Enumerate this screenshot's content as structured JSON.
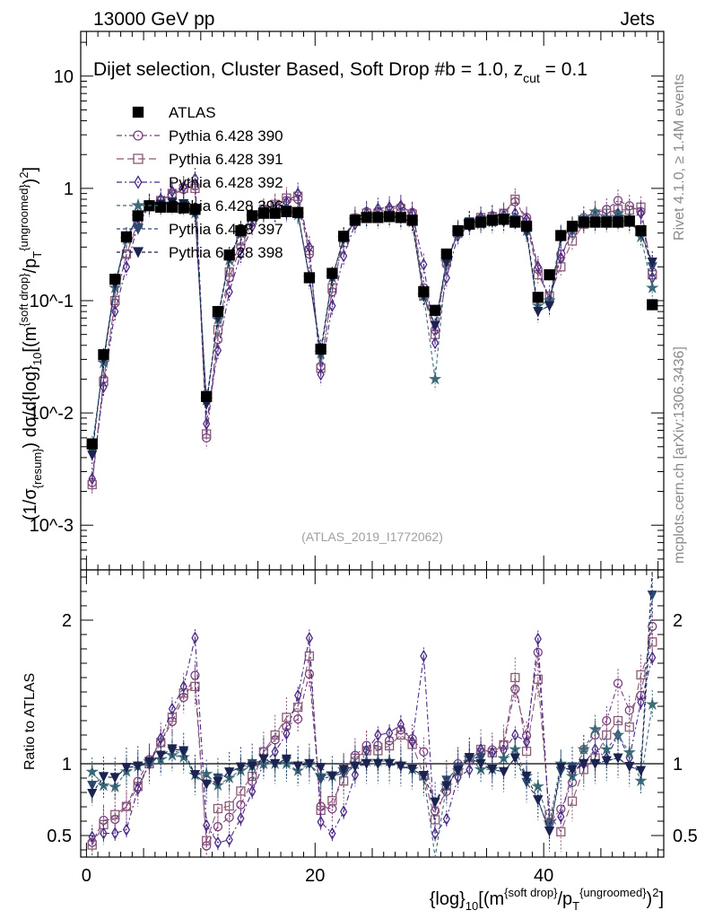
{
  "header": {
    "left": "13000 GeV pp",
    "right": "Jets"
  },
  "panel_title": "Dijet selection, Cluster Based, Soft Drop #b = 1.0, z",
  "panel_title_sub": "cut",
  "panel_title_end": " = 0.1",
  "analysis_id": "(ATLAS_2019_I1772062)",
  "side_labels": {
    "rivet": "Rivet 4.1.0, ≥ 1.4M events",
    "site": "mcplots.cern.ch [arXiv:1306.3436]"
  },
  "chart_data": [
    {
      "type": "scatter",
      "title": "Dijet selection, Cluster Based, Soft Drop #b = 1.0, z_cut = 0.1",
      "ylabel": "(1/σ_{resum}) dσ/d{log}_10[(m^{soft drop}/p_T^{ungroomed})^2]",
      "yscale": "log",
      "ylim": [
        0.0004,
        25
      ],
      "xlim": [
        -0.5,
        50.5
      ],
      "ytick_labels": [
        "10^-3",
        "10^-2",
        "10^-1",
        "1",
        "10"
      ],
      "x": [
        0.5,
        1.5,
        2.5,
        3.5,
        4.5,
        5.5,
        6.5,
        7.5,
        8.5,
        9.5,
        10.5,
        11.5,
        12.5,
        13.5,
        14.5,
        15.5,
        16.5,
        17.5,
        18.5,
        19.5,
        20.5,
        21.5,
        22.5,
        23.5,
        24.5,
        25.5,
        26.5,
        27.5,
        28.5,
        29.5,
        30.5,
        31.5,
        32.5,
        33.5,
        34.5,
        35.5,
        36.5,
        37.5,
        38.5,
        39.5,
        40.5,
        41.5,
        42.5,
        43.5,
        44.5,
        45.5,
        46.5,
        47.5,
        48.5,
        49.5
      ],
      "series": [
        {
          "name": "ATLAS",
          "marker": "square-filled",
          "color": "#000000",
          "values": [
            0.0053,
            0.033,
            0.155,
            0.37,
            0.57,
            0.7,
            0.68,
            0.68,
            0.67,
            0.65,
            0.014,
            0.08,
            0.255,
            0.42,
            0.57,
            0.6,
            0.6,
            0.62,
            0.61,
            0.16,
            0.037,
            0.175,
            0.375,
            0.52,
            0.55,
            0.55,
            0.56,
            0.55,
            0.52,
            0.12,
            0.082,
            0.26,
            0.42,
            0.48,
            0.5,
            0.52,
            0.53,
            0.5,
            0.46,
            0.107,
            0.17,
            0.38,
            0.46,
            0.5,
            0.5,
            0.5,
            0.5,
            0.51,
            0.42,
            0.092
          ]
        },
        {
          "name": "Pythia 6.428 390",
          "marker": "circle-open",
          "color": "#7b3f7f",
          "dash": "6,3,2,3",
          "values": [
            0.0024,
            0.02,
            0.095,
            0.26,
            0.5,
            0.72,
            0.78,
            0.88,
            0.98,
            1.05,
            0.006,
            0.045,
            0.16,
            0.3,
            0.5,
            0.65,
            0.7,
            0.78,
            0.8,
            0.26,
            0.026,
            0.12,
            0.36,
            0.55,
            0.62,
            0.62,
            0.65,
            0.68,
            0.61,
            0.13,
            0.055,
            0.21,
            0.42,
            0.5,
            0.54,
            0.57,
            0.6,
            0.76,
            0.55,
            0.19,
            0.1,
            0.26,
            0.4,
            0.55,
            0.6,
            0.65,
            0.78,
            0.7,
            0.62,
            0.18
          ]
        },
        {
          "name": "Pythia 6.428 391",
          "marker": "square-open",
          "color": "#8a5a76",
          "dash": "8,4",
          "values": [
            0.0023,
            0.019,
            0.1,
            0.26,
            0.48,
            0.7,
            0.78,
            0.9,
            1.0,
            1.0,
            0.0065,
            0.055,
            0.18,
            0.34,
            0.52,
            0.65,
            0.72,
            0.82,
            0.85,
            0.28,
            0.025,
            0.13,
            0.33,
            0.54,
            0.6,
            0.6,
            0.63,
            0.66,
            0.59,
            0.11,
            0.05,
            0.22,
            0.4,
            0.5,
            0.55,
            0.56,
            0.6,
            0.8,
            0.5,
            0.17,
            0.11,
            0.2,
            0.34,
            0.48,
            0.52,
            0.6,
            0.65,
            0.64,
            0.68,
            0.17
          ]
        },
        {
          "name": "Pythia 6.428 392",
          "marker": "diamond-open",
          "color": "#4b2a86",
          "dash": "6,3,2,3",
          "values": [
            0.0026,
            0.017,
            0.08,
            0.2,
            0.47,
            0.7,
            0.8,
            0.94,
            1.03,
            1.22,
            0.008,
            0.036,
            0.12,
            0.26,
            0.46,
            0.6,
            0.65,
            0.75,
            0.9,
            0.3,
            0.022,
            0.09,
            0.25,
            0.48,
            0.6,
            0.66,
            0.68,
            0.7,
            0.6,
            0.21,
            0.042,
            0.16,
            0.38,
            0.46,
            0.55,
            0.56,
            0.58,
            0.6,
            0.53,
            0.2,
            0.1,
            0.24,
            0.43,
            0.5,
            0.55,
            0.52,
            0.6,
            0.53,
            0.6,
            0.16
          ]
        },
        {
          "name": "Pythia 6.428 396",
          "marker": "star-filled",
          "color": "#3d6b78",
          "dash": "4,3",
          "values": [
            0.005,
            0.028,
            0.13,
            0.35,
            0.56,
            0.71,
            0.7,
            0.72,
            0.7,
            0.6,
            0.013,
            0.068,
            0.23,
            0.4,
            0.56,
            0.6,
            0.6,
            0.62,
            0.58,
            0.16,
            0.034,
            0.16,
            0.36,
            0.52,
            0.56,
            0.56,
            0.57,
            0.55,
            0.5,
            0.11,
            0.02,
            0.22,
            0.4,
            0.5,
            0.48,
            0.5,
            0.55,
            0.55,
            0.42,
            0.09,
            0.1,
            0.38,
            0.42,
            0.55,
            0.62,
            0.55,
            0.6,
            0.55,
            0.37,
            0.13
          ]
        },
        {
          "name": "Pythia 6.428 397",
          "marker": "triangle-down-filled",
          "color": "#2a4a70",
          "dash": "4,3",
          "values": [
            0.0045,
            0.03,
            0.14,
            0.36,
            0.56,
            0.7,
            0.72,
            0.74,
            0.72,
            0.6,
            0.012,
            0.072,
            0.24,
            0.41,
            0.57,
            0.62,
            0.6,
            0.63,
            0.6,
            0.16,
            0.033,
            0.16,
            0.35,
            0.51,
            0.55,
            0.55,
            0.56,
            0.54,
            0.5,
            0.11,
            0.06,
            0.23,
            0.41,
            0.5,
            0.52,
            0.5,
            0.5,
            0.52,
            0.4,
            0.08,
            0.09,
            0.36,
            0.45,
            0.5,
            0.5,
            0.51,
            0.52,
            0.5,
            0.4,
            0.2
          ]
        },
        {
          "name": "Pythia 6.428 398",
          "marker": "triangle-down-filled",
          "color": "#1c2350",
          "dash": "4,3",
          "values": [
            0.0042,
            0.03,
            0.14,
            0.36,
            0.56,
            0.71,
            0.72,
            0.75,
            0.73,
            0.6,
            0.012,
            0.07,
            0.24,
            0.41,
            0.56,
            0.62,
            0.6,
            0.64,
            0.6,
            0.16,
            0.036,
            0.16,
            0.36,
            0.51,
            0.55,
            0.55,
            0.56,
            0.54,
            0.5,
            0.11,
            0.06,
            0.22,
            0.4,
            0.5,
            0.5,
            0.5,
            0.5,
            0.52,
            0.42,
            0.08,
            0.09,
            0.37,
            0.44,
            0.5,
            0.5,
            0.51,
            0.52,
            0.5,
            0.4,
            0.22
          ]
        }
      ]
    },
    {
      "type": "scatter",
      "ylabel": "Ratio to ATLAS",
      "xlabel": "{log}_10[(m^{soft drop}/p_T^{ungroomed})^2]",
      "ylim": [
        0.35,
        2.35
      ],
      "xlim": [
        -0.5,
        50.5
      ],
      "yticks": [
        0.5,
        1,
        2
      ],
      "xticks": [
        0,
        20,
        40
      ],
      "reference_line": 1
    }
  ]
}
